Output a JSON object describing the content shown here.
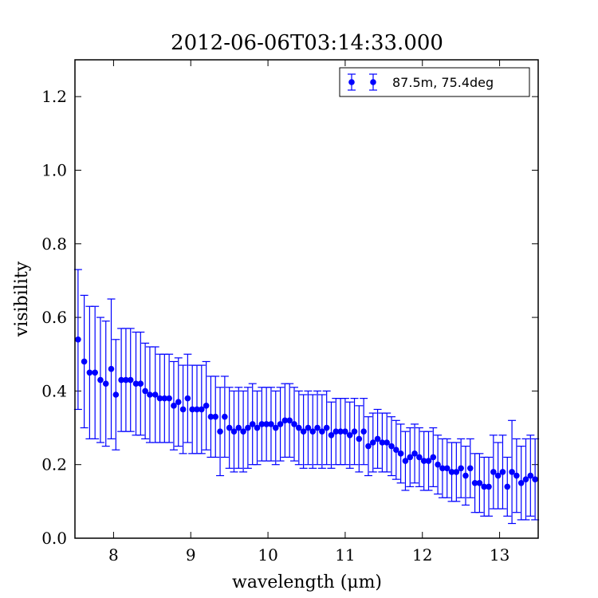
{
  "chart_data": {
    "type": "scatter",
    "title": "2012-06-06T03:14:33.000",
    "xlabel": "wavelength (μm)",
    "ylabel": "visibility",
    "xlim": [
      7.5,
      13.5
    ],
    "ylim": [
      0.0,
      1.3
    ],
    "xticks": [
      "8",
      "9",
      "10",
      "11",
      "12",
      "13"
    ],
    "yticks": [
      "0.0",
      "0.2",
      "0.4",
      "0.6",
      "0.8",
      "1.0",
      "1.2"
    ],
    "grid": false,
    "legend_position": "top-right",
    "colors": {
      "series": "#0000ff"
    },
    "series": [
      {
        "name": "87.5m, 75.4deg",
        "x": [
          7.54,
          7.62,
          7.69,
          7.76,
          7.83,
          7.9,
          7.97,
          8.03,
          8.1,
          8.16,
          8.22,
          8.29,
          8.35,
          8.41,
          8.47,
          8.54,
          8.6,
          8.66,
          8.72,
          8.78,
          8.84,
          8.9,
          8.96,
          9.02,
          9.08,
          9.14,
          9.2,
          9.26,
          9.32,
          9.38,
          9.44,
          9.5,
          9.56,
          9.62,
          9.68,
          9.74,
          9.8,
          9.86,
          9.92,
          9.98,
          10.04,
          10.1,
          10.16,
          10.22,
          10.28,
          10.34,
          10.4,
          10.46,
          10.52,
          10.58,
          10.64,
          10.7,
          10.76,
          10.82,
          10.88,
          10.94,
          11.0,
          11.06,
          11.12,
          11.18,
          11.24,
          11.3,
          11.36,
          11.42,
          11.48,
          11.54,
          11.6,
          11.66,
          11.72,
          11.78,
          11.84,
          11.9,
          11.96,
          12.02,
          12.08,
          12.14,
          12.2,
          12.26,
          12.32,
          12.38,
          12.44,
          12.5,
          12.56,
          12.62,
          12.68,
          12.74,
          12.8,
          12.86,
          12.92,
          12.98,
          13.04,
          13.1,
          13.16,
          13.22,
          13.28,
          13.34,
          13.4,
          13.46
        ],
        "y": [
          0.54,
          0.48,
          0.45,
          0.45,
          0.43,
          0.42,
          0.46,
          0.39,
          0.43,
          0.43,
          0.43,
          0.42,
          0.42,
          0.4,
          0.39,
          0.39,
          0.38,
          0.38,
          0.38,
          0.36,
          0.37,
          0.35,
          0.38,
          0.35,
          0.35,
          0.35,
          0.36,
          0.33,
          0.33,
          0.29,
          0.33,
          0.3,
          0.29,
          0.3,
          0.29,
          0.3,
          0.31,
          0.3,
          0.31,
          0.31,
          0.31,
          0.3,
          0.31,
          0.32,
          0.32,
          0.31,
          0.3,
          0.29,
          0.3,
          0.29,
          0.3,
          0.29,
          0.3,
          0.28,
          0.29,
          0.29,
          0.29,
          0.28,
          0.29,
          0.27,
          0.29,
          0.25,
          0.26,
          0.27,
          0.26,
          0.26,
          0.25,
          0.24,
          0.23,
          0.21,
          0.22,
          0.23,
          0.22,
          0.21,
          0.21,
          0.22,
          0.2,
          0.19,
          0.19,
          0.18,
          0.18,
          0.19,
          0.17,
          0.19,
          0.15,
          0.15,
          0.14,
          0.14,
          0.18,
          0.17,
          0.18,
          0.14,
          0.18,
          0.17,
          0.15,
          0.16,
          0.17,
          0.16
        ],
        "yerr": [
          0.19,
          0.18,
          0.18,
          0.18,
          0.17,
          0.17,
          0.19,
          0.15,
          0.14,
          0.14,
          0.14,
          0.14,
          0.14,
          0.13,
          0.13,
          0.13,
          0.12,
          0.12,
          0.12,
          0.12,
          0.12,
          0.12,
          0.12,
          0.12,
          0.12,
          0.12,
          0.12,
          0.11,
          0.11,
          0.12,
          0.11,
          0.11,
          0.11,
          0.11,
          0.11,
          0.11,
          0.11,
          0.1,
          0.1,
          0.1,
          0.1,
          0.1,
          0.1,
          0.1,
          0.1,
          0.1,
          0.1,
          0.1,
          0.1,
          0.1,
          0.1,
          0.1,
          0.1,
          0.09,
          0.09,
          0.09,
          0.09,
          0.09,
          0.09,
          0.09,
          0.09,
          0.08,
          0.08,
          0.08,
          0.08,
          0.08,
          0.08,
          0.08,
          0.08,
          0.08,
          0.08,
          0.08,
          0.08,
          0.08,
          0.08,
          0.08,
          0.08,
          0.08,
          0.08,
          0.08,
          0.08,
          0.08,
          0.08,
          0.08,
          0.08,
          0.08,
          0.08,
          0.08,
          0.1,
          0.09,
          0.1,
          0.08,
          0.14,
          0.1,
          0.1,
          0.11,
          0.11,
          0.11
        ]
      }
    ]
  }
}
